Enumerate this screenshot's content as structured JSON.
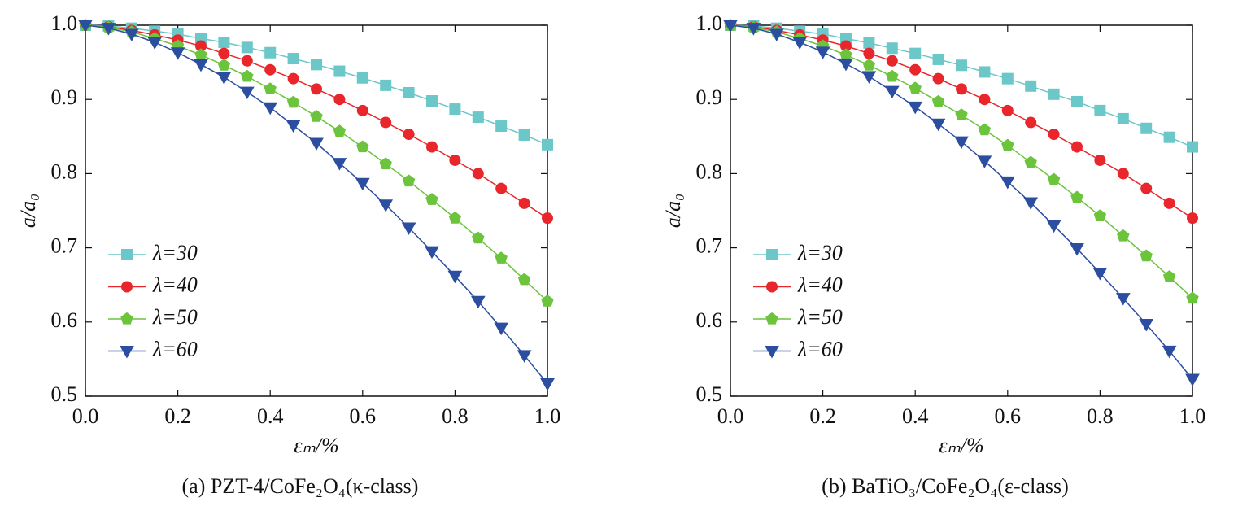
{
  "chart_data": [
    {
      "type": "line",
      "caption": "(a) PZT-4/CoFe₂O₄(κ-class)",
      "xlabel": "εₘ/%",
      "ylabel": "a/a₀",
      "x": [
        0,
        0.05,
        0.1,
        0.15,
        0.2,
        0.25,
        0.3,
        0.35,
        0.4,
        0.45,
        0.5,
        0.55,
        0.6,
        0.65,
        0.7,
        0.75,
        0.8,
        0.85,
        0.9,
        0.95,
        1.0
      ],
      "xlim": [
        0,
        1.0
      ],
      "xticks": [
        {
          "value": 0,
          "label": "0.0"
        },
        0.2,
        0.4,
        0.6,
        0.8,
        {
          "value": 1.0,
          "label": "1.0"
        }
      ],
      "ylim": [
        0.5,
        1.0
      ],
      "yticks": [
        {
          "value": 0.5,
          "label": "0.5"
        },
        0.6,
        0.7,
        0.8,
        0.9,
        {
          "value": 1.0,
          "label": "1.0"
        }
      ],
      "legend": "lower left",
      "series": [
        {
          "name": "λ=30",
          "color": "#6cc7c9",
          "marker": "square",
          "values": [
            1,
            0.999,
            0.996,
            0.992,
            0.988,
            0.982,
            0.977,
            0.97,
            0.963,
            0.955,
            0.947,
            0.938,
            0.929,
            0.919,
            0.909,
            0.898,
            0.887,
            0.876,
            0.864,
            0.852,
            0.839
          ]
        },
        {
          "name": "λ=40",
          "color": "#e8262b",
          "marker": "circle",
          "values": [
            1,
            0.998,
            0.993,
            0.987,
            0.98,
            0.972,
            0.962,
            0.952,
            0.94,
            0.928,
            0.914,
            0.9,
            0.885,
            0.869,
            0.853,
            0.836,
            0.818,
            0.8,
            0.78,
            0.76,
            0.74
          ]
        },
        {
          "name": "λ=50",
          "color": "#6cc43d",
          "marker": "pentagon",
          "values": [
            1,
            0.997,
            0.991,
            0.982,
            0.972,
            0.96,
            0.946,
            0.931,
            0.914,
            0.896,
            0.877,
            0.857,
            0.836,
            0.813,
            0.79,
            0.765,
            0.74,
            0.713,
            0.686,
            0.657,
            0.628
          ]
        },
        {
          "name": "λ=60",
          "color": "#2c4ea0",
          "marker": "triangle-down",
          "values": [
            1,
            0.996,
            0.988,
            0.977,
            0.963,
            0.947,
            0.93,
            0.91,
            0.889,
            0.865,
            0.841,
            0.814,
            0.787,
            0.758,
            0.727,
            0.695,
            0.662,
            0.628,
            0.592,
            0.555,
            0.517
          ]
        }
      ]
    },
    {
      "type": "line",
      "caption": "(b) BaTiO₃/CoFe₂O₄(ε-class)",
      "xlabel": "εₘ/%",
      "ylabel": "a/a₀",
      "x": [
        0,
        0.05,
        0.1,
        0.15,
        0.2,
        0.25,
        0.3,
        0.35,
        0.4,
        0.45,
        0.5,
        0.55,
        0.6,
        0.65,
        0.7,
        0.75,
        0.8,
        0.85,
        0.9,
        0.95,
        1.0
      ],
      "xlim": [
        0,
        1.0
      ],
      "xticks": [
        {
          "value": 0,
          "label": "0.0"
        },
        0.2,
        0.4,
        0.6,
        0.8,
        {
          "value": 1.0,
          "label": "1.0"
        }
      ],
      "ylim": [
        0.5,
        1.0
      ],
      "yticks": [
        {
          "value": 0.5,
          "label": "0.5"
        },
        0.6,
        0.7,
        0.8,
        0.9,
        {
          "value": 1.0,
          "label": "1.0"
        }
      ],
      "legend": "lower left",
      "series": [
        {
          "name": "λ=30",
          "color": "#6cc7c9",
          "marker": "square",
          "values": [
            1,
            0.999,
            0.996,
            0.992,
            0.988,
            0.982,
            0.976,
            0.969,
            0.962,
            0.954,
            0.946,
            0.937,
            0.928,
            0.918,
            0.907,
            0.897,
            0.885,
            0.874,
            0.861,
            0.849,
            0.836
          ]
        },
        {
          "name": "λ=40",
          "color": "#e8262b",
          "marker": "circle",
          "values": [
            1,
            0.998,
            0.993,
            0.987,
            0.98,
            0.972,
            0.962,
            0.952,
            0.94,
            0.928,
            0.914,
            0.9,
            0.885,
            0.869,
            0.853,
            0.836,
            0.818,
            0.8,
            0.78,
            0.76,
            0.74
          ]
        },
        {
          "name": "λ=50",
          "color": "#6cc43d",
          "marker": "pentagon",
          "values": [
            1,
            0.997,
            0.991,
            0.982,
            0.972,
            0.96,
            0.946,
            0.931,
            0.915,
            0.897,
            0.879,
            0.859,
            0.838,
            0.815,
            0.792,
            0.768,
            0.743,
            0.716,
            0.689,
            0.661,
            0.632
          ]
        },
        {
          "name": "λ=60",
          "color": "#2c4ea0",
          "marker": "triangle-down",
          "values": [
            1,
            0.996,
            0.988,
            0.977,
            0.964,
            0.948,
            0.931,
            0.911,
            0.89,
            0.867,
            0.843,
            0.817,
            0.789,
            0.761,
            0.73,
            0.699,
            0.666,
            0.632,
            0.597,
            0.561,
            0.523
          ]
        }
      ]
    }
  ]
}
